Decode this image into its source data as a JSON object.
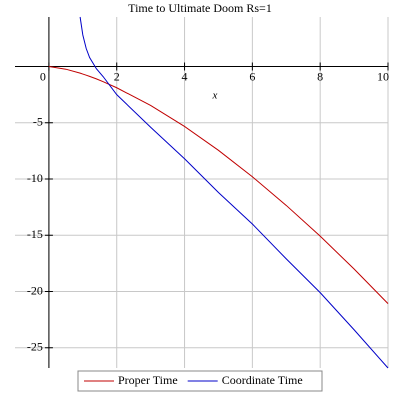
{
  "chart_data": {
    "type": "line",
    "title": "Time to Ultimate Doom Rs=1",
    "x_label": "x",
    "x": [
      0,
      0.5,
      0.92,
      1,
      1.1,
      1.2,
      1.4,
      1.6,
      2,
      3,
      4,
      5,
      6,
      7,
      8,
      9,
      10
    ],
    "series": [
      {
        "name": "Proper Time",
        "color": "#c00000",
        "values": [
          0,
          -0.24,
          -0.59,
          -0.67,
          -0.77,
          -0.88,
          -1.1,
          -1.35,
          -1.89,
          -3.46,
          -5.33,
          -7.45,
          -9.8,
          -12.35,
          -15.08,
          -18.0,
          -21.08
        ]
      },
      {
        "name": "Coordinate Time",
        "color": "#0000c8",
        "values": [
          null,
          null,
          4.4,
          2.8,
          1.6,
          0.8,
          -0.2,
          -0.9,
          -2.5,
          -5.4,
          -8.2,
          -11.2,
          -14.0,
          -17.1,
          -20.1,
          -23.4,
          -26.8
        ]
      }
    ],
    "xlim": [
      -1,
      10
    ],
    "ylim": [
      -26.8,
      4.4
    ],
    "xticks": [
      0,
      2,
      4,
      6,
      8,
      10
    ],
    "yticks": [
      -25,
      -20,
      -15,
      -10,
      -5
    ],
    "grid": true
  }
}
